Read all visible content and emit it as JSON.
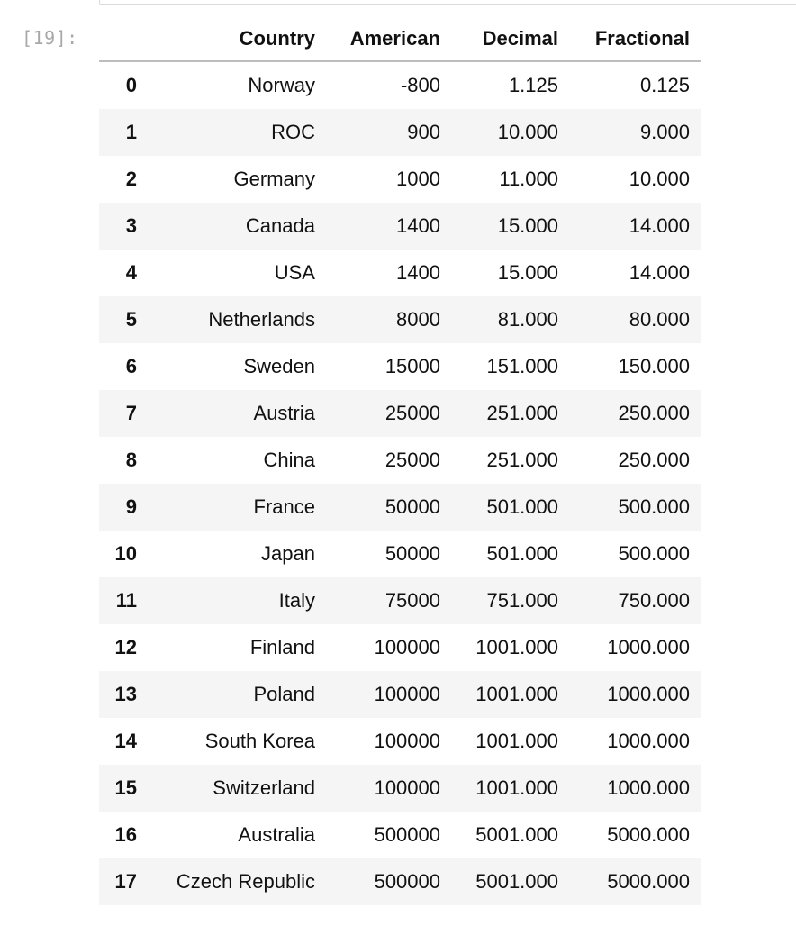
{
  "notebook": {
    "prompt": "[19]:"
  },
  "dataframe": {
    "columns": [
      "",
      "Country",
      "American",
      "Decimal",
      "Fractional"
    ],
    "rows": [
      {
        "index": "0",
        "country": "Norway",
        "american": "-800",
        "decimal": "1.125",
        "fractional": "0.125"
      },
      {
        "index": "1",
        "country": "ROC",
        "american": "900",
        "decimal": "10.000",
        "fractional": "9.000"
      },
      {
        "index": "2",
        "country": "Germany",
        "american": "1000",
        "decimal": "11.000",
        "fractional": "10.000"
      },
      {
        "index": "3",
        "country": "Canada",
        "american": "1400",
        "decimal": "15.000",
        "fractional": "14.000"
      },
      {
        "index": "4",
        "country": "USA",
        "american": "1400",
        "decimal": "15.000",
        "fractional": "14.000"
      },
      {
        "index": "5",
        "country": "Netherlands",
        "american": "8000",
        "decimal": "81.000",
        "fractional": "80.000"
      },
      {
        "index": "6",
        "country": "Sweden",
        "american": "15000",
        "decimal": "151.000",
        "fractional": "150.000"
      },
      {
        "index": "7",
        "country": "Austria",
        "american": "25000",
        "decimal": "251.000",
        "fractional": "250.000"
      },
      {
        "index": "8",
        "country": "China",
        "american": "25000",
        "decimal": "251.000",
        "fractional": "250.000"
      },
      {
        "index": "9",
        "country": "France",
        "american": "50000",
        "decimal": "501.000",
        "fractional": "500.000"
      },
      {
        "index": "10",
        "country": "Japan",
        "american": "50000",
        "decimal": "501.000",
        "fractional": "500.000"
      },
      {
        "index": "11",
        "country": "Italy",
        "american": "75000",
        "decimal": "751.000",
        "fractional": "750.000"
      },
      {
        "index": "12",
        "country": "Finland",
        "american": "100000",
        "decimal": "1001.000",
        "fractional": "1000.000"
      },
      {
        "index": "13",
        "country": "Poland",
        "american": "100000",
        "decimal": "1001.000",
        "fractional": "1000.000"
      },
      {
        "index": "14",
        "country": "South Korea",
        "american": "100000",
        "decimal": "1001.000",
        "fractional": "1000.000"
      },
      {
        "index": "15",
        "country": "Switzerland",
        "american": "100000",
        "decimal": "1001.000",
        "fractional": "1000.000"
      },
      {
        "index": "16",
        "country": "Australia",
        "american": "500000",
        "decimal": "5001.000",
        "fractional": "5000.000"
      },
      {
        "index": "17",
        "country": "Czech Republic",
        "american": "500000",
        "decimal": "5001.000",
        "fractional": "5000.000"
      }
    ]
  }
}
